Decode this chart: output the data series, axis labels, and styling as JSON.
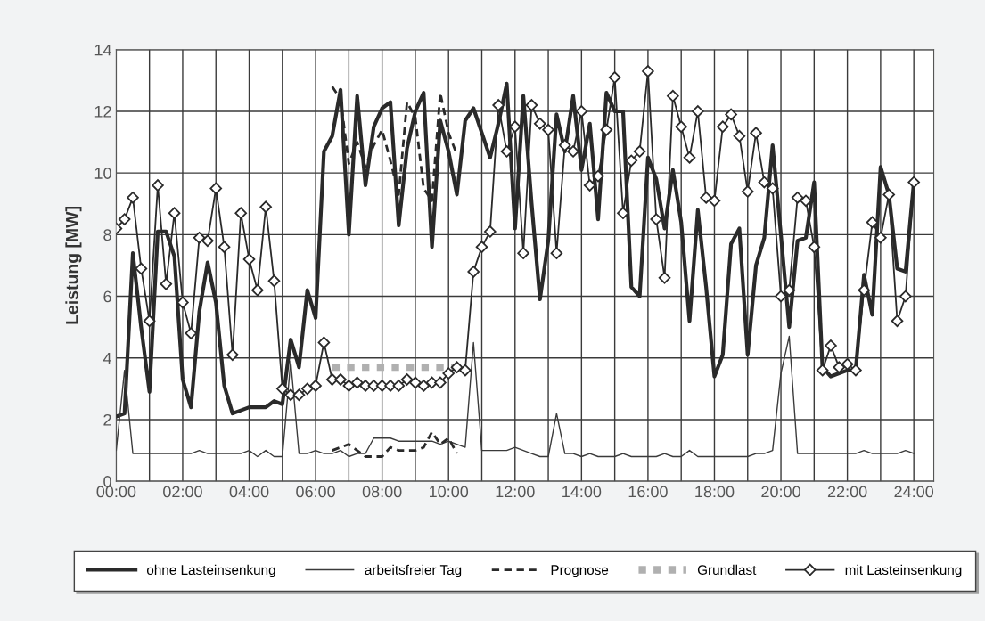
{
  "chart_data": {
    "type": "line",
    "ylabel": "Leistung [MW]",
    "x": [
      0,
      0.25,
      0.5,
      0.75,
      1,
      1.25,
      1.5,
      1.75,
      2,
      2.25,
      2.5,
      2.75,
      3,
      3.25,
      3.5,
      3.75,
      4,
      4.25,
      4.5,
      4.75,
      5,
      5.25,
      5.5,
      5.75,
      6,
      6.25,
      6.5,
      6.75,
      7,
      7.25,
      7.5,
      7.75,
      8,
      8.25,
      8.5,
      8.75,
      9,
      9.25,
      9.5,
      9.75,
      10,
      10.25,
      10.5,
      10.75,
      11,
      11.25,
      11.5,
      11.75,
      12,
      12.25,
      12.5,
      12.75,
      13,
      13.25,
      13.5,
      13.75,
      14,
      14.25,
      14.5,
      14.75,
      15,
      15.25,
      15.5,
      15.75,
      16,
      16.25,
      16.5,
      16.75,
      17,
      17.25,
      17.5,
      17.75,
      18,
      18.25,
      18.5,
      18.75,
      19,
      19.25,
      19.5,
      19.75,
      20,
      20.25,
      20.5,
      20.75,
      21,
      21.25,
      21.5,
      21.75,
      22,
      22.25,
      22.5,
      22.75,
      23,
      23.25,
      23.5,
      23.75,
      24
    ],
    "series": [
      {
        "name": "ohne Lasteinsenkung",
        "color": "#2a2a2a",
        "values": [
          2.1,
          2.2,
          7.4,
          5.0,
          2.9,
          8.1,
          8.1,
          7.3,
          3.3,
          2.4,
          5.5,
          7.1,
          5.8,
          3.1,
          2.2,
          2.3,
          2.4,
          2.4,
          2.4,
          2.6,
          2.5,
          4.6,
          3.7,
          6.2,
          5.3,
          10.7,
          11.2,
          12.7,
          8.0,
          12.5,
          9.6,
          11.5,
          12.1,
          12.3,
          8.3,
          10.8,
          12.0,
          12.6,
          7.6,
          11.7,
          10.7,
          9.3,
          11.7,
          12.1,
          11.3,
          10.5,
          11.6,
          12.9,
          8.2,
          12.5,
          9.0,
          5.9,
          7.8,
          11.9,
          10.7,
          12.5,
          10.1,
          11.6,
          8.5,
          12.6,
          12.0,
          12.0,
          6.3,
          6.0,
          10.5,
          9.8,
          8.2,
          10.1,
          8.4,
          5.2,
          8.8,
          6.3,
          3.4,
          4.1,
          7.7,
          8.2,
          4.1,
          7.0,
          7.9,
          10.9,
          8.0,
          5.0,
          7.8,
          7.9,
          9.7,
          3.7,
          3.4,
          3.5,
          3.6,
          3.6,
          6.7,
          5.4,
          10.2,
          9.3,
          6.9,
          6.8,
          9.7
        ]
      },
      {
        "name": "arbeitsfreier Tag",
        "color": "#3a3a3a",
        "values": [
          1.0,
          3.6,
          0.9,
          0.9,
          0.9,
          0.9,
          0.9,
          0.9,
          0.9,
          0.9,
          1.0,
          0.9,
          0.9,
          0.9,
          0.9,
          0.9,
          1.0,
          0.8,
          1.0,
          0.8,
          0.8,
          3.9,
          0.9,
          0.9,
          1.0,
          0.9,
          0.9,
          1.0,
          0.8,
          0.9,
          0.9,
          1.4,
          1.4,
          1.4,
          1.3,
          1.3,
          1.3,
          1.3,
          1.3,
          1.2,
          1.3,
          1.2,
          1.1,
          4.5,
          1.0,
          1.0,
          1.0,
          1.0,
          1.1,
          1.0,
          0.9,
          0.8,
          0.8,
          2.2,
          0.9,
          0.9,
          0.8,
          0.9,
          0.8,
          0.8,
          0.8,
          0.9,
          0.8,
          0.8,
          0.8,
          0.8,
          0.9,
          0.8,
          0.8,
          1.0,
          0.8,
          0.8,
          0.8,
          0.8,
          0.8,
          0.8,
          0.8,
          0.9,
          0.9,
          1.0,
          3.5,
          4.7,
          0.9,
          0.9,
          0.9,
          0.9,
          0.9,
          0.9,
          0.9,
          0.9,
          1.0,
          0.9,
          0.9,
          0.9,
          0.9,
          1.0,
          0.9
        ]
      },
      {
        "name": "Prognose",
        "color": "#2a2a2a",
        "line_style": "dashed",
        "x": [
          6.5,
          6.75,
          7,
          7.25,
          7.5,
          7.75,
          8,
          8.25,
          8.5,
          8.75,
          9,
          9.25,
          9.5,
          9.75,
          10,
          10.25
        ],
        "values": [
          12.8,
          12.4,
          10.3,
          11.0,
          10.2,
          10.9,
          11.4,
          10.4,
          9.3,
          12.3,
          11.8,
          9.5,
          9.1,
          12.6,
          11.3,
          10.6
        ]
      },
      {
        "color": "#2a2a2a",
        "line_style": "dashed",
        "x": [
          6.5,
          6.75,
          7,
          7.25,
          7.5,
          7.75,
          8,
          8.25,
          8.5,
          8.75,
          9,
          9.25,
          9.5,
          9.75,
          10,
          10.25
        ],
        "values": [
          1.0,
          1.1,
          1.2,
          1.0,
          0.8,
          0.8,
          0.8,
          1.1,
          1.0,
          1.0,
          1.0,
          1.1,
          1.6,
          1.2,
          1.4,
          0.9
        ]
      },
      {
        "name": "Grundlast",
        "color": "#b0b0b0",
        "line_style": "dotted",
        "x": [
          6.5,
          10.5
        ],
        "values": [
          3.7,
          3.7
        ]
      },
      {
        "name": "mit Lasteinsenkung",
        "color": "#2a2a2a",
        "marker": "diamond",
        "values": [
          8.2,
          8.5,
          9.2,
          6.9,
          5.2,
          9.6,
          6.4,
          8.7,
          5.8,
          4.8,
          7.9,
          7.8,
          9.5,
          7.6,
          4.1,
          8.7,
          7.2,
          6.2,
          8.9,
          6.5,
          3.0,
          2.8,
          2.8,
          3.0,
          3.1,
          4.5,
          3.3,
          3.3,
          3.1,
          3.2,
          3.1,
          3.1,
          3.1,
          3.1,
          3.1,
          3.3,
          3.2,
          3.1,
          3.2,
          3.2,
          3.5,
          3.7,
          3.6,
          6.8,
          7.6,
          8.1,
          12.2,
          10.7,
          11.5,
          7.4,
          12.2,
          11.6,
          11.4,
          7.4,
          10.9,
          10.7,
          12.0,
          9.6,
          9.9,
          11.4,
          13.1,
          8.7,
          10.4,
          10.7,
          13.3,
          8.5,
          6.6,
          12.5,
          11.5,
          10.5,
          12.0,
          9.2,
          9.1,
          11.5,
          11.9,
          11.2,
          9.4,
          11.3,
          9.7,
          9.5,
          6.0,
          6.2,
          9.2,
          9.1,
          7.6,
          3.6,
          4.4,
          3.7,
          3.8,
          3.6,
          6.2,
          8.4,
          7.9,
          9.3,
          5.2,
          6.0,
          9.7
        ]
      }
    ],
    "xlim": [
      0,
      24.6
    ],
    "xticks": [
      {
        "value": 0,
        "label": "00:00"
      },
      {
        "value": 1,
        "label": null
      },
      {
        "value": 2,
        "label": "02:00"
      },
      {
        "value": 3,
        "label": null
      },
      {
        "value": 4,
        "label": "04:00"
      },
      {
        "value": 5,
        "label": null
      },
      {
        "value": 6,
        "label": "06:00"
      },
      {
        "value": 7,
        "label": null
      },
      {
        "value": 8,
        "label": "08:00"
      },
      {
        "value": 9,
        "label": null
      },
      {
        "value": 10,
        "label": "10:00"
      },
      {
        "value": 11,
        "label": null
      },
      {
        "value": 12,
        "label": "12:00"
      },
      {
        "value": 13,
        "label": null
      },
      {
        "value": 14,
        "label": "14:00"
      },
      {
        "value": 15,
        "label": null
      },
      {
        "value": 16,
        "label": "16:00"
      },
      {
        "value": 17,
        "label": null
      },
      {
        "value": 18,
        "label": "18:00"
      },
      {
        "value": 19,
        "label": null
      },
      {
        "value": 20,
        "label": "20:00"
      },
      {
        "value": 21,
        "label": null
      },
      {
        "value": 22,
        "label": "22:00"
      },
      {
        "value": 23,
        "label": null
      },
      {
        "value": 24,
        "label": "24:00"
      }
    ],
    "ylim": [
      0,
      14
    ],
    "yticks": [
      0,
      2,
      4,
      6,
      8,
      10,
      12,
      14
    ],
    "grid": true,
    "legend": "bottom"
  }
}
